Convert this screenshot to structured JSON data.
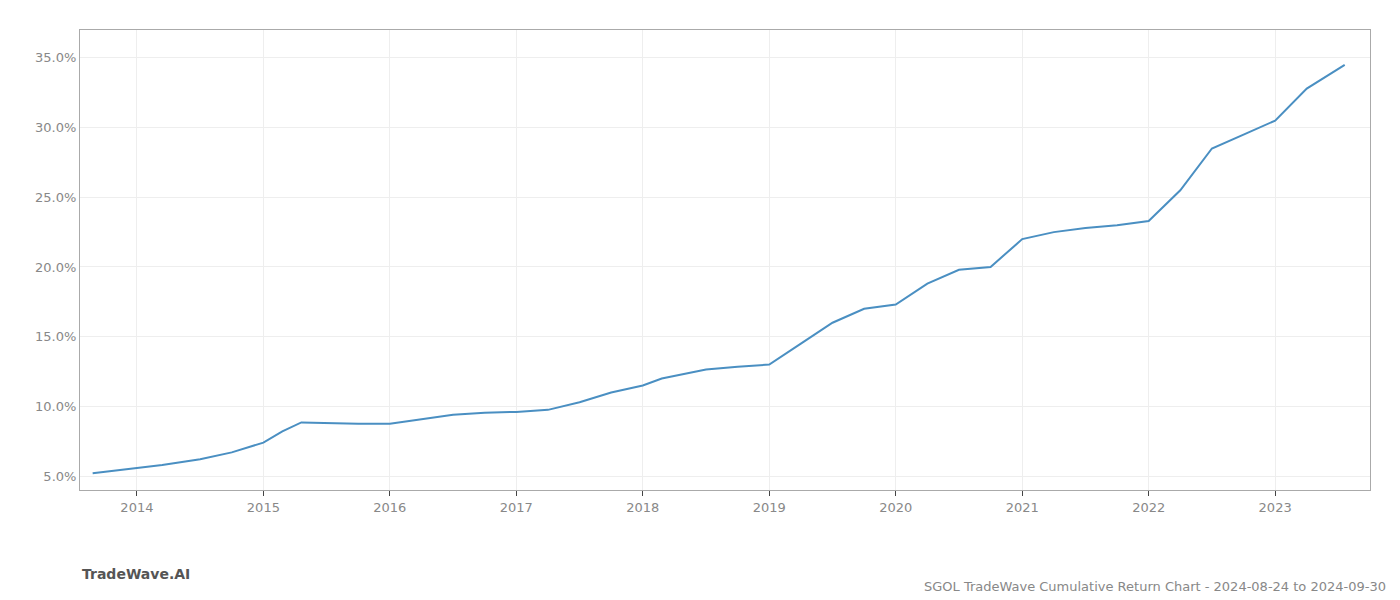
{
  "chart_data": {
    "type": "line",
    "title": "SGOL TradeWave Cumulative Return Chart - 2024-08-24 to 2024-09-30",
    "annotations": [
      "TradeWave.AI"
    ],
    "x": [
      2013.65,
      2013.8,
      2014.0,
      2014.2,
      2014.5,
      2014.75,
      2015.0,
      2015.15,
      2015.3,
      2015.5,
      2015.75,
      2016.0,
      2016.25,
      2016.5,
      2016.75,
      2017.0,
      2017.25,
      2017.5,
      2017.75,
      2018.0,
      2018.15,
      2018.5,
      2018.75,
      2019.0,
      2019.25,
      2019.5,
      2019.75,
      2020.0,
      2020.25,
      2020.5,
      2020.75,
      2021.0,
      2021.25,
      2021.5,
      2021.75,
      2022.0,
      2022.25,
      2022.5,
      2022.75,
      2023.0,
      2023.25,
      2023.55
    ],
    "values": [
      5.2,
      5.35,
      5.55,
      5.8,
      6.2,
      6.7,
      7.4,
      8.2,
      8.85,
      8.8,
      8.75,
      8.75,
      9.1,
      9.4,
      9.55,
      9.6,
      9.75,
      10.3,
      11.0,
      11.5,
      12.0,
      12.65,
      12.85,
      13.0,
      14.5,
      16.0,
      17.0,
      17.3,
      18.8,
      19.8,
      20.0,
      22.0,
      22.5,
      22.8,
      23.0,
      23.3,
      25.5,
      28.5,
      29.5,
      30.5,
      32.8,
      34.5
    ],
    "color": "#4a8fc2",
    "xlim": [
      2013.55,
      2023.75
    ],
    "xticks": [
      2014,
      2015,
      2016,
      2017,
      2018,
      2019,
      2020,
      2021,
      2022,
      2023
    ],
    "ylim": [
      4.0,
      37.0
    ],
    "yticks": [
      {
        "value": 5.0,
        "label": "5.0%"
      },
      {
        "value": 10.0,
        "label": "10.0%"
      },
      {
        "value": 15.0,
        "label": "15.0%"
      },
      {
        "value": 20.0,
        "label": "20.0%"
      },
      {
        "value": 25.0,
        "label": "25.0%"
      },
      {
        "value": 30.0,
        "label": "30.0%"
      },
      {
        "value": 35.0,
        "label": "35.0%"
      }
    ],
    "grid": true
  }
}
